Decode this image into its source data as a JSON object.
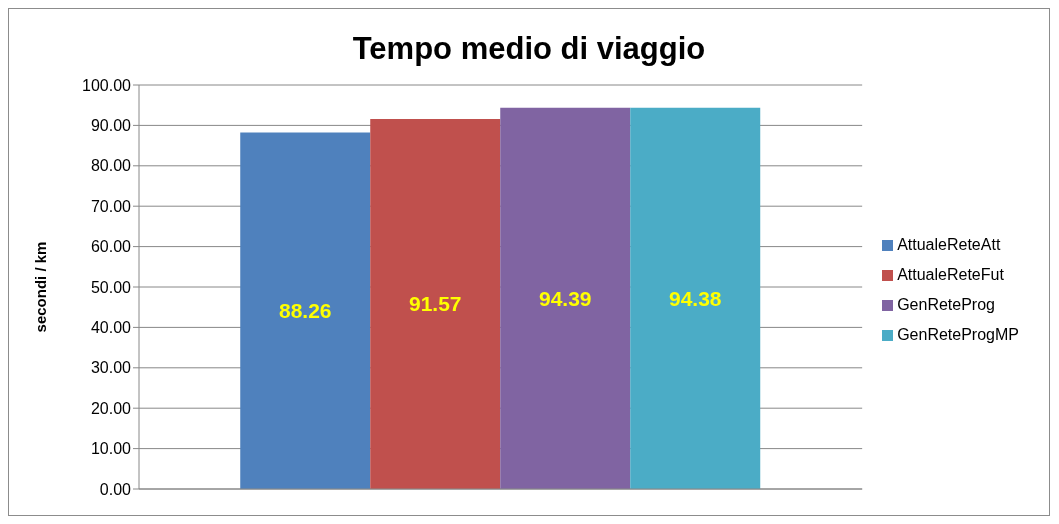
{
  "chart_data": {
    "type": "bar",
    "title": "Tempo medio di viaggio",
    "ylabel": "secondi / km",
    "categories": [
      null
    ],
    "series": [
      {
        "name": "AttualeReteAtt",
        "color": "#4f81bd",
        "values": [
          88.26
        ]
      },
      {
        "name": "AttualeReteFut",
        "color": "#c0504d",
        "values": [
          91.57
        ]
      },
      {
        "name": "GenReteProg",
        "color": "#8064a2",
        "values": [
          94.39
        ]
      },
      {
        "name": "GenReteProgMP",
        "color": "#4bacc6",
        "values": [
          94.38
        ]
      }
    ],
    "ylim": [
      0,
      100
    ],
    "yticks": [
      {
        "value": 0,
        "label": "0.00"
      },
      {
        "value": 10,
        "label": "10.00"
      },
      {
        "value": 20,
        "label": "20.00"
      },
      {
        "value": 30,
        "label": "30.00"
      },
      {
        "value": 40,
        "label": "40.00"
      },
      {
        "value": 50,
        "label": "50.00"
      },
      {
        "value": 60,
        "label": "60.00"
      },
      {
        "value": 70,
        "label": "70.00"
      },
      {
        "value": 80,
        "label": "80.00"
      },
      {
        "value": 90,
        "label": "90.00"
      },
      {
        "value": 100,
        "label": "100.00"
      }
    ],
    "grid": "y",
    "legend": "right",
    "data_labels": true
  }
}
